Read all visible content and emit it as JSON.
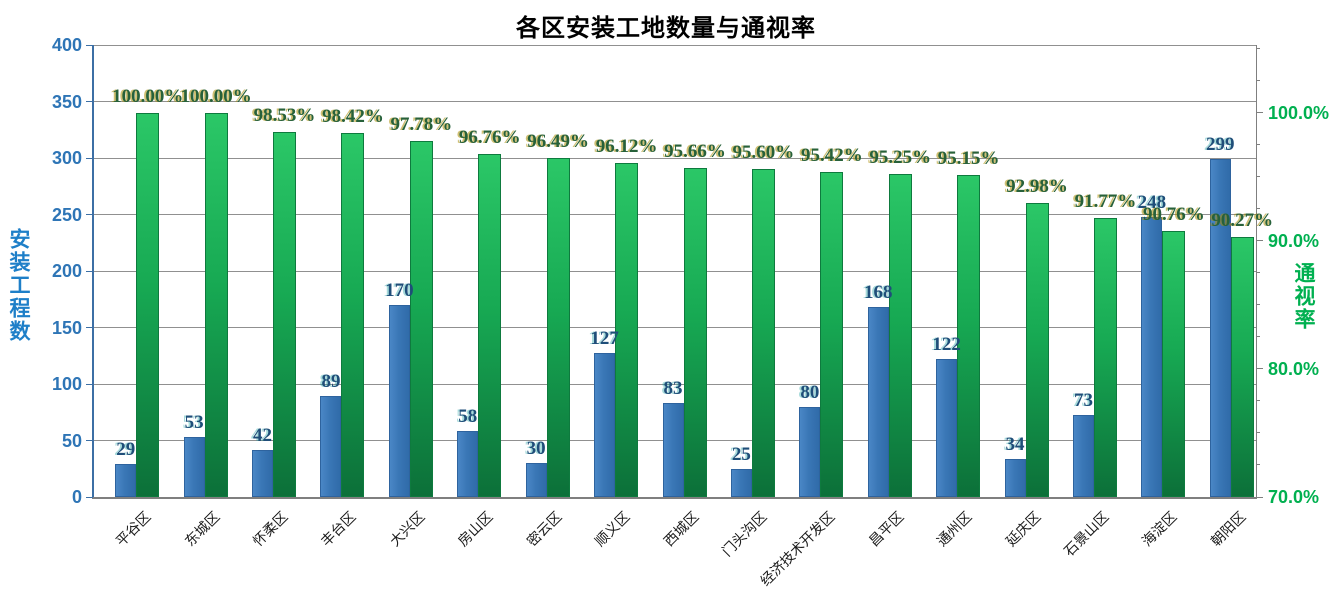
{
  "title": "各区安装工地数量与通视率",
  "chart_data": {
    "type": "bar",
    "title": "各区安装工地数量与通视率",
    "grid": true,
    "legend": "none",
    "categories": [
      "平谷区",
      "东城区",
      "怀柔区",
      "丰台区",
      "大兴区",
      "房山区",
      "密云区",
      "顺义区",
      "西城区",
      "门头沟区",
      "经济技术开发区",
      "昌平区",
      "通州区",
      "延庆区",
      "石景山区",
      "海淀区",
      "朝阳区"
    ],
    "series": [
      {
        "name": "安装工程数",
        "axis": "left",
        "type": "bar",
        "values": [
          29,
          53,
          42,
          89,
          170,
          58,
          30,
          127,
          83,
          25,
          80,
          168,
          122,
          34,
          73,
          248,
          299
        ],
        "value_labels": [
          "29",
          "53",
          "42",
          "89",
          "170",
          "58",
          "30",
          "127",
          "83",
          "25",
          "80",
          "168",
          "122",
          "34",
          "73",
          "248",
          "299"
        ]
      },
      {
        "name": "通视率",
        "axis": "right",
        "type": "bar",
        "values": [
          100.0,
          100.0,
          98.53,
          98.42,
          97.78,
          96.76,
          96.49,
          96.12,
          95.66,
          95.6,
          95.42,
          95.25,
          95.15,
          92.98,
          91.77,
          90.76,
          90.27
        ],
        "value_labels": [
          "100.00%",
          "100.00%",
          "98.53%",
          "98.42%",
          "97.78%",
          "96.76%",
          "96.49%",
          "96.12%",
          "95.66%",
          "95.60%",
          "95.42%",
          "95.25%",
          "95.15%",
          "92.98%",
          "91.77%",
          "90.76%",
          "90.27%"
        ]
      }
    ],
    "left_axis": {
      "label": "安装工程数",
      "min": 0,
      "max": 400,
      "ticks": [
        0,
        50,
        100,
        150,
        200,
        250,
        300,
        350,
        400
      ],
      "tick_labels": [
        "0",
        "50",
        "100",
        "150",
        "200",
        "250",
        "300",
        "350",
        "400"
      ]
    },
    "right_axis": {
      "label": "通视率",
      "min": 70,
      "max": 105.3,
      "ticks": [
        70,
        80,
        90,
        100
      ],
      "tick_labels": [
        "70.0%",
        "80.0%",
        "90.0%",
        "100.0%"
      ],
      "minor_tick_step": 2.5
    },
    "colors": {
      "bar_blue": "#3A77B6",
      "bar_blue_border": "#2E639E",
      "bar_green_top": "#2BC767",
      "bar_green_bottom": "#0C7039",
      "left_axis_text": "#2E75B6",
      "right_axis_text": "#00B050",
      "value_label_blue": "#1F4E79",
      "value_label_green": "#27613A",
      "gridline": "#909090",
      "axis_line": "#7F7F7F",
      "title": "#000000"
    }
  }
}
